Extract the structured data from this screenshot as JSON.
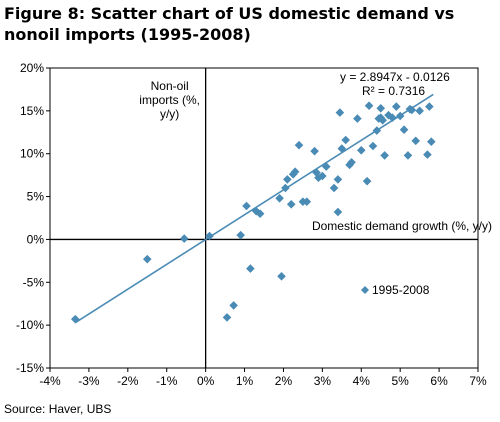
{
  "title": "Figure 8: Scatter chart of US domestic demand vs nonoil imports (1995-2008)",
  "source": "Source:   Haver, UBS",
  "chart_data": {
    "type": "scatter",
    "ylabel": "Non-oil imports (%, y/y)",
    "ylabel_lines": [
      "Non-oil",
      "imports (%,",
      "y/y)"
    ],
    "xlabel": "Domestic demand growth (%, y/y)",
    "xlim": [
      -4,
      7
    ],
    "ylim": [
      -15,
      20
    ],
    "xticks": [
      -4,
      -3,
      -2,
      -1,
      0,
      1,
      2,
      3,
      4,
      5,
      6,
      7
    ],
    "yticks": [
      -15,
      -10,
      -5,
      0,
      5,
      10,
      15,
      20
    ],
    "xtick_labels": [
      "-4%",
      "-3%",
      "-2%",
      "-1%",
      "0%",
      "1%",
      "2%",
      "3%",
      "4%",
      "5%",
      "6%",
      "7%"
    ],
    "ytick_labels": [
      "-15%",
      "-10%",
      "-5%",
      "0%",
      "5%",
      "10%",
      "15%",
      "20%"
    ],
    "grid": false,
    "legend_position": "lower-right",
    "marker_color": "#4a8bb5",
    "line_color": "#4a8bb5",
    "series": [
      {
        "name": "1995-2008",
        "x": [
          -3.35,
          -1.5,
          -0.55,
          0.1,
          0.72,
          0.9,
          1.15,
          0.55,
          1.05,
          1.3,
          1.4,
          1.9,
          1.95,
          2.05,
          2.1,
          2.2,
          2.25,
          2.3,
          2.4,
          2.5,
          2.6,
          2.8,
          2.85,
          2.9,
          3.0,
          3.1,
          3.3,
          3.4,
          3.4,
          3.45,
          3.5,
          3.6,
          3.7,
          3.75,
          3.9,
          4.0,
          4.15,
          4.2,
          4.3,
          4.4,
          4.45,
          4.5,
          4.5,
          4.55,
          4.6,
          4.7,
          4.8,
          4.9,
          5.0,
          5.1,
          5.2,
          5.25,
          5.3,
          5.4,
          5.5,
          5.7,
          5.75,
          5.8
        ],
        "y": [
          -9.3,
          -2.3,
          0.1,
          0.4,
          -7.7,
          0.5,
          -3.4,
          -9.1,
          3.9,
          3.3,
          3.0,
          4.8,
          -4.3,
          6.0,
          7.0,
          4.1,
          7.6,
          7.9,
          11.0,
          4.4,
          4.4,
          10.3,
          7.8,
          7.2,
          7.4,
          8.5,
          6.0,
          7.0,
          3.2,
          14.8,
          10.6,
          11.6,
          8.7,
          9.0,
          14.1,
          10.4,
          6.8,
          15.6,
          10.9,
          12.7,
          14.1,
          14.2,
          15.3,
          13.9,
          9.8,
          14.5,
          14.2,
          15.5,
          14.4,
          12.8,
          9.8,
          15.2,
          15.1,
          11.5,
          15.0,
          9.9,
          15.5,
          11.4
        ]
      }
    ],
    "trendline": {
      "equation": "y = 2.8947x - 0.0126",
      "r_squared": "R² = 0.7316",
      "slope": 2.8947,
      "intercept": -0.0126,
      "x_range": [
        -3.35,
        5.85
      ]
    }
  }
}
